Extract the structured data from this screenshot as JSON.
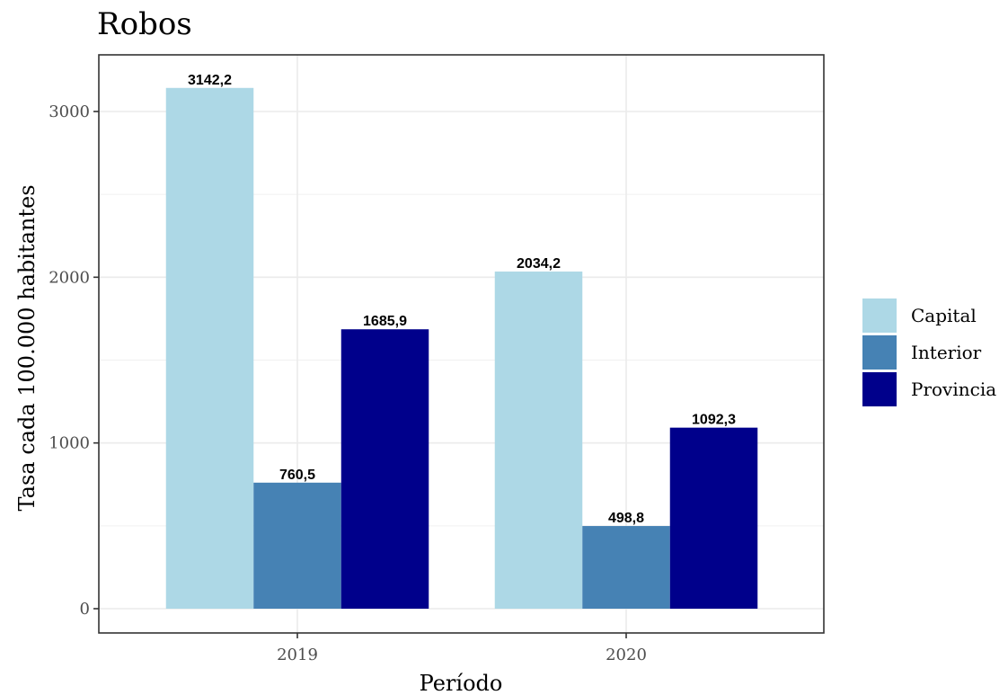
{
  "chart_data": {
    "type": "bar",
    "title": "Robos",
    "xlabel": "Período",
    "ylabel": "Tasa cada 100.000 habitantes",
    "categories": [
      "2019",
      "2020"
    ],
    "series": [
      {
        "name": "Capital",
        "values": [
          3142.2,
          2034.2
        ],
        "labels": [
          "3142,2",
          "2034,2"
        ],
        "color": "#ADD8E6"
      },
      {
        "name": "Interior",
        "values": [
          760.5,
          498.8
        ],
        "labels": [
          "760,5",
          "498,8"
        ],
        "color": "#4682B4"
      },
      {
        "name": "Provincia",
        "values": [
          1685.9,
          1092.3
        ],
        "labels": [
          "1685,9",
          "1092,3"
        ],
        "color": "#00008B"
      }
    ],
    "yticks": [
      0,
      1000,
      2000,
      3000
    ],
    "ytick_labels": [
      "0",
      "1000",
      "2000",
      "3000"
    ],
    "ylim": [
      0,
      3300
    ],
    "grid": true,
    "legend_position": "right"
  }
}
